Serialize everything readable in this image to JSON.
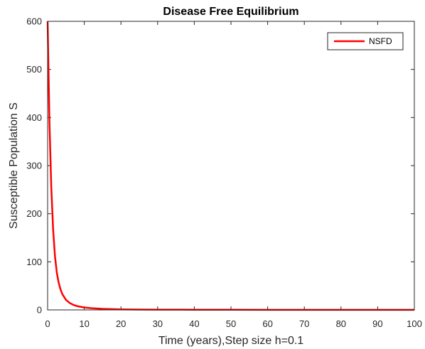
{
  "chart_data": {
    "type": "line",
    "title": "Disease Free Equilibrium",
    "xlabel": "Time (years),Step size h=0.1",
    "ylabel": "Susceptible Population S",
    "xlim": [
      0,
      100
    ],
    "ylim": [
      0,
      600
    ],
    "x_ticks": [
      "0",
      "10",
      "20",
      "30",
      "40",
      "50",
      "60",
      "70",
      "80",
      "90",
      "100"
    ],
    "y_ticks": [
      "0",
      "100",
      "200",
      "300",
      "400",
      "500",
      "600"
    ],
    "grid": false,
    "legend_position": "top-right",
    "series": [
      {
        "name": "NSFD",
        "color": "#ff0000",
        "x": [
          0,
          0.5,
          1,
          1.5,
          2,
          2.5,
          3,
          3.5,
          4,
          5,
          6,
          7,
          8,
          10,
          12,
          15,
          20,
          25,
          30,
          40,
          50,
          60,
          70,
          80,
          90,
          100
        ],
        "y": [
          600,
          390,
          255,
          167,
          112,
          78,
          57,
          43,
          33,
          21,
          14.5,
          10.5,
          8,
          5,
          3.5,
          2.2,
          1.2,
          0.8,
          0.6,
          0.4,
          0.3,
          0.25,
          0.2,
          0.2,
          0.2,
          0.2
        ]
      }
    ]
  }
}
